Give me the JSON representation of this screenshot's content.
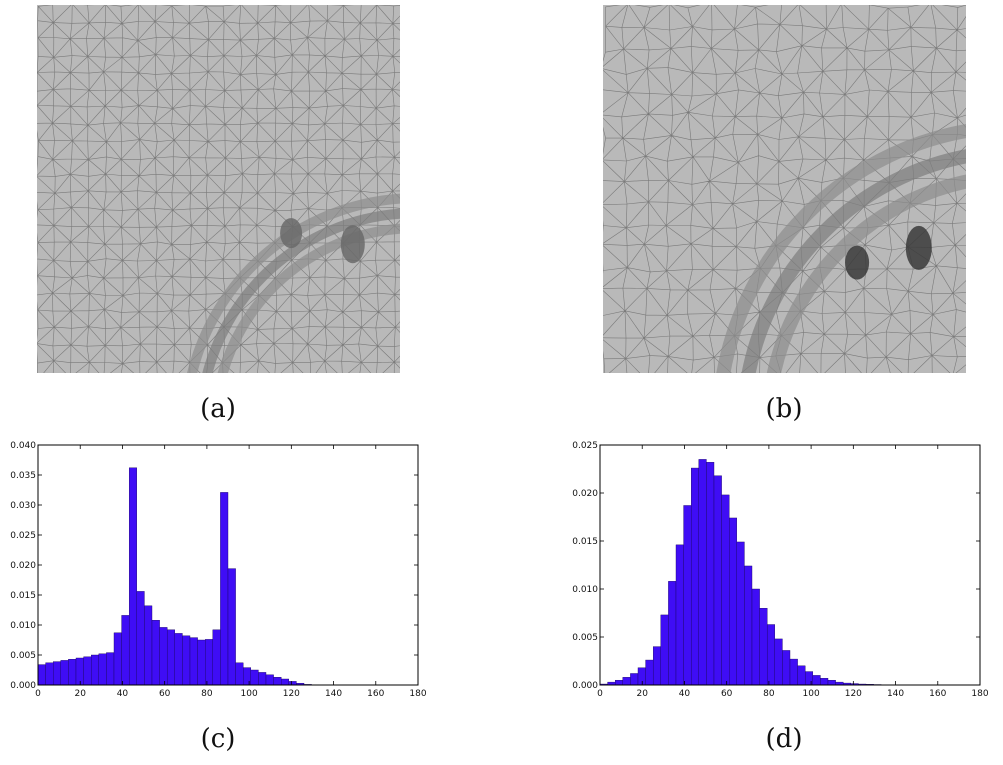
{
  "captions": {
    "a": "(a)",
    "b": "(b)",
    "c": "(c)",
    "d": "(d)"
  },
  "colors": {
    "bar": "#3f0df5",
    "mesh_bg": "#b9b9b9",
    "mesh_line": "#6f6f6f"
  },
  "chart_data": [
    {
      "type": "bar",
      "panel": "c",
      "bin_width": 3.6,
      "x_start": 0,
      "xlim": [
        0,
        180
      ],
      "ylim": [
        0,
        0.04
      ],
      "xticks": [
        0,
        20,
        40,
        60,
        80,
        100,
        120,
        140,
        160,
        180
      ],
      "yticks": [
        "0.000",
        "0.005",
        "0.010",
        "0.015",
        "0.020",
        "0.025",
        "0.030",
        "0.035",
        "0.040"
      ],
      "values": [
        0.0034,
        0.0037,
        0.0039,
        0.0041,
        0.0043,
        0.0045,
        0.0047,
        0.005,
        0.0052,
        0.0054,
        0.0087,
        0.0116,
        0.0362,
        0.0156,
        0.0132,
        0.0108,
        0.0096,
        0.0092,
        0.0086,
        0.0082,
        0.0079,
        0.0075,
        0.0076,
        0.0092,
        0.0321,
        0.0194,
        0.0037,
        0.0029,
        0.0025,
        0.0021,
        0.0017,
        0.0013,
        0.001,
        0.0006,
        0.0003,
        0.0001,
        5e-05,
        0.0,
        0.0,
        0.0,
        0.0,
        0.0,
        0.0,
        0.0,
        0.0,
        0.0,
        0.0,
        0.0,
        0.0,
        0.0
      ]
    },
    {
      "type": "bar",
      "panel": "d",
      "bin_width": 3.6,
      "x_start": 0,
      "xlim": [
        0,
        180
      ],
      "ylim": [
        0,
        0.025
      ],
      "xticks": [
        0,
        20,
        40,
        60,
        80,
        100,
        120,
        140,
        160,
        180
      ],
      "yticks": [
        "0.000",
        "0.005",
        "0.010",
        "0.015",
        "0.020",
        "0.025"
      ],
      "values": [
        0.0001,
        0.0003,
        0.0005,
        0.0008,
        0.0012,
        0.0018,
        0.0026,
        0.004,
        0.0073,
        0.0108,
        0.0146,
        0.0187,
        0.0226,
        0.0235,
        0.0232,
        0.0218,
        0.0198,
        0.0174,
        0.0149,
        0.0124,
        0.01,
        0.008,
        0.0063,
        0.0048,
        0.0036,
        0.0027,
        0.002,
        0.0014,
        0.001,
        0.0007,
        0.0005,
        0.0003,
        0.0002,
        0.00015,
        0.0001,
        8e-05,
        5e-05,
        3e-05,
        2e-05,
        1e-05,
        0.0,
        0.0,
        0.0,
        0.0,
        0.0,
        0.0,
        0.0,
        0.0,
        0.0,
        0.0
      ]
    }
  ]
}
